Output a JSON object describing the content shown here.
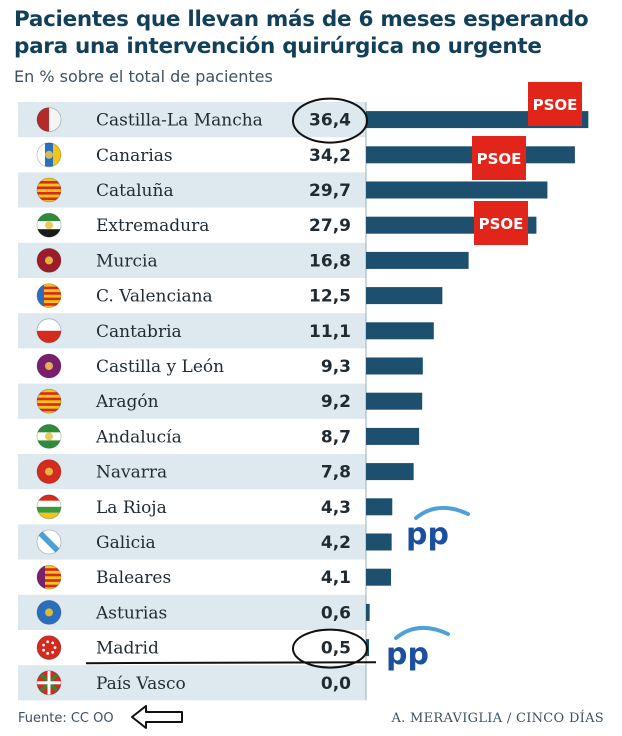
{
  "chart_data": {
    "type": "bar",
    "orientation": "horizontal",
    "title": "Pacientes que llevan más de 6 meses esperando para una intervención quirúrgica no urgente",
    "subtitle": "En % sobre el total de pacientes",
    "categories": [
      "Castilla-La Mancha",
      "Canarias",
      "Cataluña",
      "Extremadura",
      "Murcia",
      "C. Valenciana",
      "Cantabria",
      "Castilla y León",
      "Aragón",
      "Andalucía",
      "Navarra",
      "La Rioja",
      "Galicia",
      "Baleares",
      "Asturias",
      "Madrid",
      "País Vasco"
    ],
    "values": [
      36.4,
      34.2,
      29.7,
      27.9,
      16.8,
      12.5,
      11.1,
      9.3,
      9.2,
      8.7,
      7.8,
      4.3,
      4.2,
      4.1,
      0.6,
      0.5,
      0.0
    ],
    "value_labels": [
      "36,4",
      "34,2",
      "29,7",
      "27,9",
      "16,8",
      "12,5",
      "11,1",
      "9,3",
      "9,2",
      "8,7",
      "7,8",
      "4,3",
      "4,2",
      "4,1",
      "0,6",
      "0,5",
      "0,0"
    ],
    "bar_color": "#1d4f6e",
    "stripe_color": "#dde9ef",
    "xlim": [
      0,
      37
    ],
    "annotations": {
      "psoe_label": "PSOE",
      "psoe_rows": [
        0,
        1,
        3
      ],
      "psoe_color": "#e1251b",
      "pp_label": "pp",
      "pp_rows": [
        12,
        15
      ],
      "pp_color": "#1c4fa0",
      "circled_rows": [
        0,
        15
      ],
      "underline_row": 15
    },
    "flags": [
      "castilla-la-mancha-flag-icon",
      "canarias-flag-icon",
      "cataluna-flag-icon",
      "extremadura-flag-icon",
      "murcia-flag-icon",
      "c-valenciana-flag-icon",
      "cantabria-flag-icon",
      "castilla-y-leon-flag-icon",
      "aragon-flag-icon",
      "andalucia-flag-icon",
      "navarra-flag-icon",
      "la-rioja-flag-icon",
      "galicia-flag-icon",
      "baleares-flag-icon",
      "asturias-flag-icon",
      "madrid-flag-icon",
      "pais-vasco-flag-icon"
    ]
  },
  "footer": {
    "source": "Fuente: CC OO",
    "credit": "A. MERAVIGLIA / CINCO DÍAS"
  }
}
